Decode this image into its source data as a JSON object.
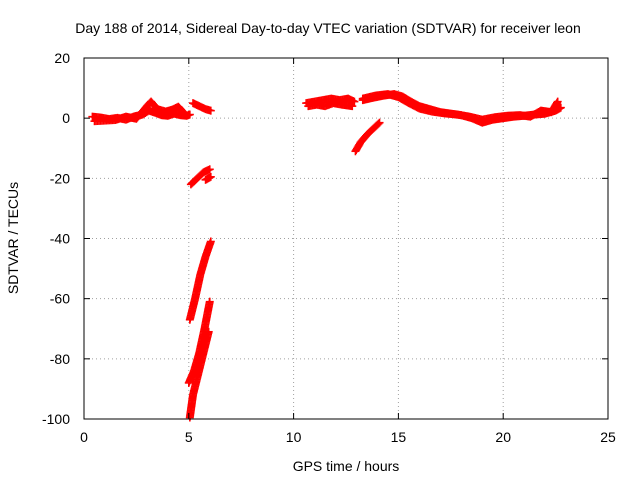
{
  "chart_data": {
    "type": "scatter",
    "title": "Day 188 of 2014, Sidereal Day-to-day VTEC variation (SDTVAR) for receiver leon",
    "xlabel": "GPS time / hours",
    "ylabel": "SDTVAR / TECUs",
    "xlim": [
      0,
      25
    ],
    "ylim": [
      -100,
      20
    ],
    "xticks": [
      0,
      5,
      10,
      15,
      20,
      25
    ],
    "yticks": [
      -100,
      -80,
      -60,
      -40,
      -20,
      0,
      20
    ],
    "grid": true,
    "marker": "plus",
    "colors": {
      "series": "#ff0000",
      "grid": "#a0a0a0",
      "axes": "#000000"
    },
    "series": [
      {
        "segments": [
          [
            [
              0.4,
              0.5
            ],
            [
              0.8,
              0.2
            ],
            [
              1.2,
              -0.3
            ],
            [
              1.6,
              0.1
            ],
            [
              2.0,
              -0.5
            ],
            [
              2.4,
              0.6
            ],
            [
              2.8,
              1.2
            ],
            [
              3.1,
              2.5
            ],
            [
              3.4,
              1.8
            ],
            [
              3.7,
              1.0
            ],
            [
              4.0,
              0.8
            ],
            [
              4.3,
              1.5
            ],
            [
              4.6,
              1.0
            ],
            [
              4.9,
              0.8
            ],
            [
              5.05,
              1.2
            ]
          ],
          [
            [
              0.5,
              -1.0
            ],
            [
              1.0,
              -0.8
            ],
            [
              1.5,
              -0.6
            ],
            [
              2.0,
              0.5
            ],
            [
              2.5,
              -0.2
            ],
            [
              3.0,
              4.0
            ],
            [
              3.2,
              5.5
            ],
            [
              3.5,
              3.0
            ],
            [
              3.9,
              2.2
            ],
            [
              4.2,
              2.8
            ],
            [
              4.5,
              3.8
            ],
            [
              4.8,
              1.5
            ]
          ],
          [
            [
              5.2,
              5.0
            ],
            [
              5.5,
              4.0
            ],
            [
              5.8,
              3.0
            ],
            [
              6.05,
              2.5
            ]
          ],
          [
            [
              5.1,
              -22.0
            ],
            [
              5.4,
              -20.0
            ],
            [
              5.7,
              -18.0
            ],
            [
              6.0,
              -17.0
            ]
          ],
          [
            [
              5.8,
              -20.5
            ],
            [
              6.05,
              -19.5
            ]
          ],
          [
            [
              5.05,
              -67.0
            ],
            [
              5.3,
              -60.0
            ],
            [
              5.55,
              -52.0
            ],
            [
              5.8,
              -46.0
            ],
            [
              6.05,
              -41.0
            ]
          ],
          [
            [
              5.0,
              -88.0
            ],
            [
              5.25,
              -84.0
            ],
            [
              5.5,
              -78.0
            ],
            [
              5.75,
              -70.0
            ],
            [
              6.0,
              -61.0
            ]
          ],
          [
            [
              5.05,
              -99.5
            ],
            [
              5.2,
              -92.0
            ],
            [
              5.45,
              -85.0
            ],
            [
              5.7,
              -78.0
            ],
            [
              5.95,
              -71.0
            ]
          ],
          [
            [
              10.6,
              5.0
            ],
            [
              11.0,
              5.5
            ],
            [
              11.4,
              6.0
            ],
            [
              11.8,
              6.5
            ],
            [
              12.2,
              6.0
            ],
            [
              12.6,
              6.5
            ],
            [
              12.9,
              5.5
            ]
          ],
          [
            [
              10.7,
              4.0
            ],
            [
              11.1,
              4.5
            ],
            [
              11.5,
              4.0
            ],
            [
              11.9,
              5.0
            ],
            [
              12.3,
              4.5
            ],
            [
              12.8,
              4.0
            ]
          ],
          [
            [
              12.95,
              -11.0
            ],
            [
              13.2,
              -8.0
            ],
            [
              13.5,
              -5.5
            ],
            [
              13.8,
              -3.5
            ],
            [
              14.1,
              -1.5
            ]
          ],
          [
            [
              13.3,
              6.0
            ],
            [
              13.8,
              6.8
            ],
            [
              14.3,
              7.5
            ],
            [
              14.8,
              8.0
            ],
            [
              15.2,
              7.2
            ],
            [
              15.6,
              5.5
            ],
            [
              16.0,
              4.0
            ],
            [
              16.5,
              3.0
            ],
            [
              17.0,
              2.0
            ],
            [
              17.5,
              1.5
            ],
            [
              18.0,
              1.0
            ],
            [
              18.5,
              0.0
            ],
            [
              19.0,
              -1.5
            ],
            [
              19.5,
              -0.5
            ],
            [
              20.0,
              0.0
            ],
            [
              20.5,
              0.5
            ],
            [
              21.0,
              0.8
            ],
            [
              21.5,
              1.2
            ],
            [
              22.0,
              1.5
            ],
            [
              22.5,
              2.5
            ],
            [
              22.75,
              3.5
            ]
          ],
          [
            [
              13.3,
              6.5
            ],
            [
              13.9,
              7.5
            ],
            [
              14.5,
              8.0
            ],
            [
              15.0,
              7.0
            ],
            [
              15.5,
              5.0
            ],
            [
              16.0,
              3.2
            ],
            [
              16.6,
              2.2
            ],
            [
              17.2,
              1.6
            ],
            [
              17.8,
              1.2
            ],
            [
              18.4,
              0.5
            ],
            [
              19.0,
              -0.5
            ],
            [
              19.6,
              0.3
            ],
            [
              20.2,
              0.8
            ],
            [
              20.8,
              1.0
            ],
            [
              21.3,
              0.5
            ],
            [
              21.8,
              2.5
            ],
            [
              22.3,
              2.0
            ],
            [
              22.6,
              5.5
            ]
          ]
        ]
      }
    ]
  }
}
